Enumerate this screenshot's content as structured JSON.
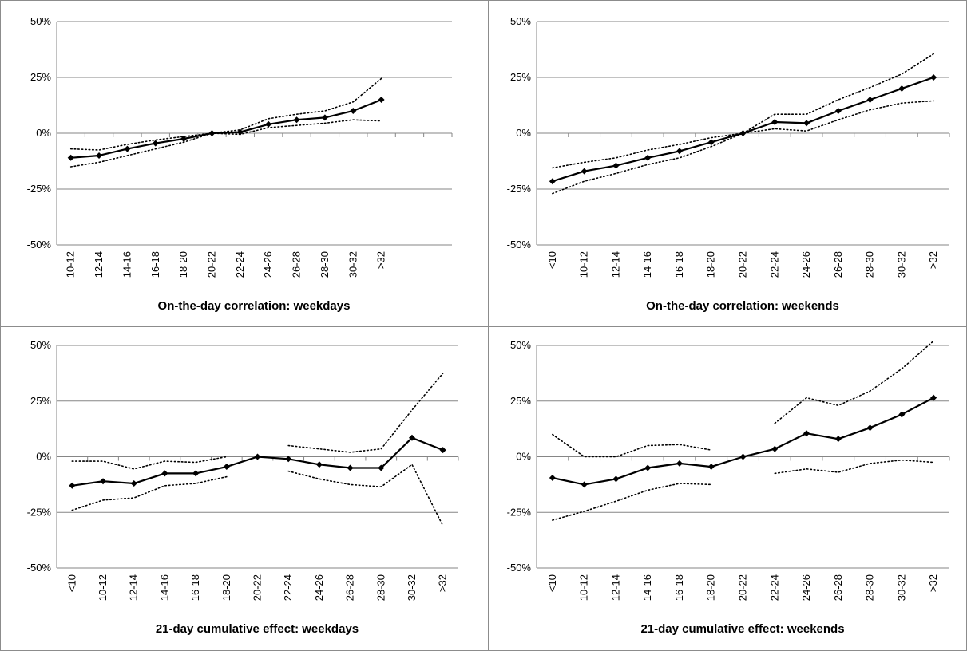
{
  "chart_data": [
    {
      "type": "line",
      "title": "On-the-day correlation: weekdays",
      "categories": [
        "10-12",
        "12-14",
        "14-16",
        "16-18",
        "18-20",
        "20-22",
        "22-24",
        "24-26",
        "26-28",
        "28-30",
        "30-32",
        ">32"
      ],
      "yticks": [
        "50%",
        "25%",
        "0%",
        "-25%",
        "-50%"
      ],
      "ylim": [
        -50,
        50
      ],
      "grid": true,
      "series": [
        {
          "role": "estimate",
          "values": [
            -11,
            -10,
            -7,
            -4.5,
            -2.5,
            0,
            0.5,
            4,
            6,
            7,
            10,
            15
          ]
        },
        {
          "role": "upper",
          "values": [
            -7,
            -7.5,
            -5,
            -3,
            -1.5,
            0,
            1.5,
            6.5,
            8.5,
            10,
            14,
            24.5
          ]
        },
        {
          "role": "lower",
          "values": [
            -15,
            -13,
            -10,
            -7,
            -4,
            0,
            -0.5,
            2.5,
            3.5,
            4.5,
            6,
            5.5
          ]
        }
      ]
    },
    {
      "type": "line",
      "title": "On-the-day correlation: weekends",
      "categories": [
        "<10",
        "10-12",
        "12-14",
        "14-16",
        "16-18",
        "18-20",
        "20-22",
        "22-24",
        "24-26",
        "26-28",
        "28-30",
        "30-32",
        ">32"
      ],
      "yticks": [
        "50%",
        "25%",
        "0%",
        "-25%",
        "-50%"
      ],
      "ylim": [
        -50,
        50
      ],
      "grid": true,
      "series": [
        {
          "role": "estimate",
          "values": [
            -21.5,
            -17,
            -14.5,
            -11,
            -8,
            -4,
            0,
            5,
            4.5,
            10,
            15,
            20,
            25
          ]
        },
        {
          "role": "upper",
          "values": [
            -15.5,
            -13,
            -11,
            -7.5,
            -5,
            -2,
            0,
            8.5,
            8.5,
            15,
            20.5,
            26.5,
            35.5
          ]
        },
        {
          "role": "lower",
          "values": [
            -27,
            -21.5,
            -18,
            -14,
            -11,
            -6,
            0,
            2,
            1,
            6,
            10.5,
            13.5,
            14.5
          ]
        }
      ]
    },
    {
      "type": "line",
      "title": "21-day cumulative effect: weekdays",
      "categories": [
        "<10",
        "10-12",
        "12-14",
        "14-16",
        "16-18",
        "18-20",
        "20-22",
        "22-24",
        "24-26",
        "26-28",
        "28-30",
        "30-32",
        ">32"
      ],
      "yticks": [
        "50%",
        "25%",
        "0%",
        "-25%",
        "-50%"
      ],
      "ylim": [
        -50,
        50
      ],
      "grid": true,
      "series": [
        {
          "role": "estimate",
          "values": [
            -13,
            -11,
            -12,
            -7.5,
            -7.5,
            -4.5,
            0,
            -1,
            -3.5,
            -5,
            -5,
            8.5,
            3
          ]
        },
        {
          "role": "upper",
          "values": [
            -2,
            -2,
            -5.5,
            -2,
            -2.5,
            0,
            null,
            5,
            3.5,
            2,
            3.5,
            21,
            37.5
          ]
        },
        {
          "role": "lower",
          "values": [
            -24,
            -19.5,
            -18.5,
            -13,
            -12,
            -9,
            null,
            -6.5,
            -10,
            -12.5,
            -13.5,
            -3.5,
            -31
          ]
        }
      ]
    },
    {
      "type": "line",
      "title": "21-day cumulative effect: weekends",
      "categories": [
        "<10",
        "10-12",
        "12-14",
        "14-16",
        "16-18",
        "18-20",
        "20-22",
        "22-24",
        "24-26",
        "26-28",
        "28-30",
        "30-32",
        ">32"
      ],
      "yticks": [
        "50%",
        "25%",
        "0%",
        "-25%",
        "-50%"
      ],
      "ylim": [
        -50,
        50
      ],
      "grid": true,
      "series": [
        {
          "role": "estimate",
          "values": [
            -9.5,
            -12.5,
            -10,
            -5,
            -3,
            -4.5,
            0,
            3.5,
            10.5,
            8,
            13,
            19,
            26.5
          ]
        },
        {
          "role": "upper",
          "values": [
            10,
            0,
            0,
            5,
            5.5,
            3,
            null,
            15,
            26.5,
            23,
            29.5,
            39.5,
            52
          ]
        },
        {
          "role": "lower",
          "values": [
            -28.5,
            -24.5,
            -20,
            -15,
            -12,
            -12.5,
            null,
            -7.5,
            -5.5,
            -7,
            -3,
            -1.5,
            -2.5
          ]
        }
      ]
    }
  ]
}
